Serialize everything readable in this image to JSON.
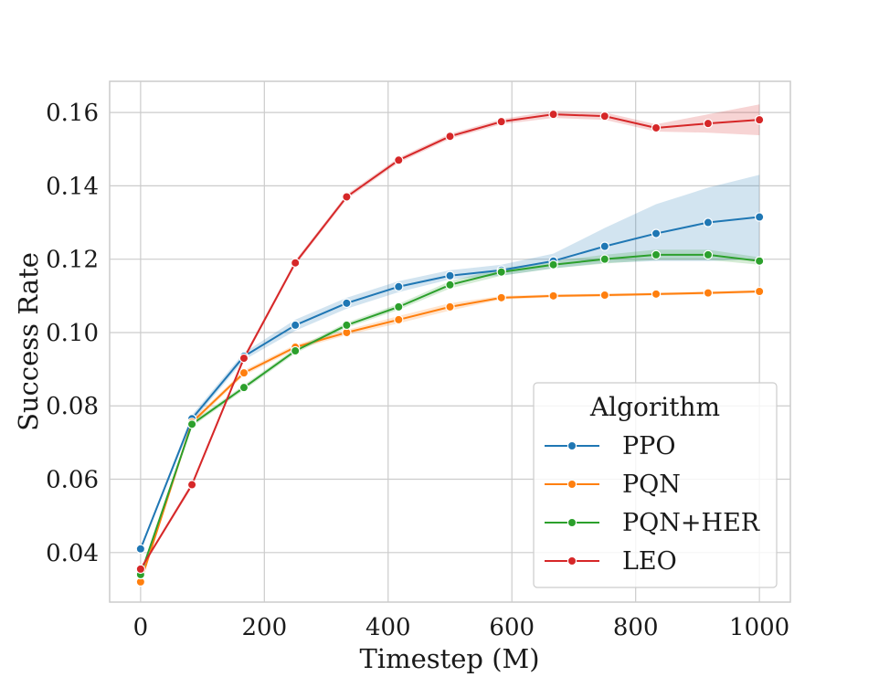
{
  "chart_data": {
    "type": "line",
    "title": "",
    "xlabel": "Timestep (M)",
    "ylabel": "Success Rate",
    "xlim": [
      -50,
      1050
    ],
    "ylim": [
      0.0265,
      0.1685
    ],
    "xticks": [
      0,
      200,
      400,
      600,
      800,
      1000
    ],
    "xtick_labels": [
      "0",
      "200",
      "400",
      "600",
      "800",
      "1000"
    ],
    "yticks": [
      0.04,
      0.06,
      0.08,
      0.1,
      0.12,
      0.14,
      0.16
    ],
    "ytick_labels": [
      "0.04",
      "0.06",
      "0.08",
      "0.10",
      "0.12",
      "0.14",
      "0.16"
    ],
    "grid": true,
    "legend": {
      "title": "Algorithm",
      "placement": "lower-right"
    },
    "x": [
      0,
      83,
      167,
      250,
      333,
      417,
      500,
      583,
      667,
      750,
      833,
      917,
      1000
    ],
    "series": [
      {
        "name": "PPO",
        "color": "#1f77b4",
        "values": [
          0.041,
          0.0765,
          0.0935,
          0.102,
          0.108,
          0.1125,
          0.1155,
          0.117,
          0.1195,
          0.1235,
          0.127,
          0.13,
          0.1315
        ],
        "lower": [
          0.0405,
          0.0755,
          0.0925,
          0.1005,
          0.1065,
          0.111,
          0.1145,
          0.1155,
          0.1175,
          0.119,
          0.1195,
          0.1195,
          0.12
        ],
        "upper": [
          0.0415,
          0.0775,
          0.0945,
          0.1035,
          0.1095,
          0.114,
          0.117,
          0.1185,
          0.1215,
          0.1285,
          0.135,
          0.1395,
          0.143
        ]
      },
      {
        "name": "PQN",
        "color": "#ff7f0e",
        "values": [
          0.032,
          0.0755,
          0.089,
          0.096,
          0.1,
          0.1035,
          0.107,
          0.1095,
          0.11,
          0.1102,
          0.1105,
          0.1108,
          0.1112
        ],
        "lower": [
          0.0315,
          0.0748,
          0.0883,
          0.0953,
          0.0993,
          0.1025,
          0.106,
          0.109,
          0.1096,
          0.1098,
          0.1101,
          0.1104,
          0.1108
        ],
        "upper": [
          0.0325,
          0.0762,
          0.0897,
          0.0967,
          0.1007,
          0.1045,
          0.108,
          0.11,
          0.1104,
          0.1106,
          0.1109,
          0.1112,
          0.1116
        ]
      },
      {
        "name": "PQN+HER",
        "color": "#2ca02c",
        "values": [
          0.034,
          0.075,
          0.085,
          0.095,
          0.102,
          0.107,
          0.113,
          0.1165,
          0.1185,
          0.12,
          0.1212,
          0.1212,
          0.1195
        ],
        "lower": [
          0.0335,
          0.0743,
          0.0843,
          0.0943,
          0.1013,
          0.1062,
          0.112,
          0.1155,
          0.1175,
          0.1188,
          0.1198,
          0.1198,
          0.1185
        ],
        "upper": [
          0.0345,
          0.0757,
          0.0857,
          0.0957,
          0.1027,
          0.1078,
          0.114,
          0.1175,
          0.1195,
          0.1212,
          0.1226,
          0.1226,
          0.1205
        ]
      },
      {
        "name": "LEO",
        "color": "#d62728",
        "values": [
          0.0355,
          0.0585,
          0.093,
          0.119,
          0.137,
          0.147,
          0.1535,
          0.1575,
          0.1595,
          0.159,
          0.1558,
          0.157,
          0.158
        ],
        "lower": [
          0.035,
          0.0578,
          0.0923,
          0.1183,
          0.1363,
          0.1463,
          0.1528,
          0.1568,
          0.1585,
          0.158,
          0.1548,
          0.1545,
          0.1538
        ],
        "upper": [
          0.036,
          0.0592,
          0.0937,
          0.1197,
          0.1377,
          0.1477,
          0.1542,
          0.1582,
          0.1605,
          0.16,
          0.1568,
          0.1595,
          0.1622
        ]
      }
    ]
  }
}
